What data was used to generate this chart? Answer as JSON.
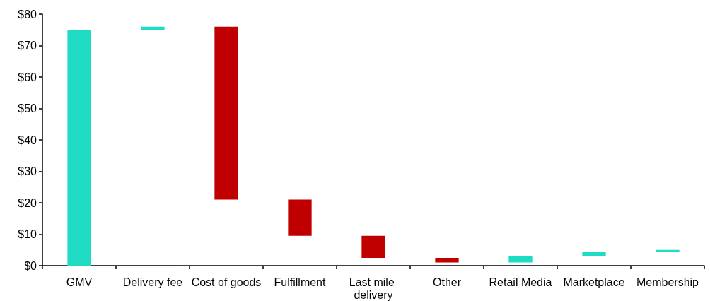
{
  "chart_data": {
    "type": "bar",
    "categories": [
      "GMV",
      "Delivery fee",
      "Cost of goods",
      "Fulfillment",
      "Last mile delivery",
      "Other",
      "Retail Media",
      "Marketplace",
      "Membership"
    ],
    "base": [
      0,
      75,
      76,
      21,
      9.5,
      2.5,
      1,
      3,
      4.5
    ],
    "values": [
      75,
      1,
      -55,
      -11.5,
      -7,
      -1.5,
      2,
      1.5,
      0.5
    ],
    "colors": [
      "#1fdbc4",
      "#1fdbc4",
      "#c00000",
      "#c00000",
      "#c00000",
      "#c00000",
      "#1fdbc4",
      "#1fdbc4",
      "#1fdbc4"
    ],
    "ylim": [
      0,
      80
    ],
    "yticks": [
      {
        "value": 0,
        "label": "$0"
      },
      {
        "value": 10,
        "label": "$10"
      },
      {
        "value": 20,
        "label": "$20"
      },
      {
        "value": 30,
        "label": "$30"
      },
      {
        "value": 40,
        "label": "$40"
      },
      {
        "value": 50,
        "label": "$50"
      },
      {
        "value": 60,
        "label": "$60"
      },
      {
        "value": 70,
        "label": "$70"
      },
      {
        "value": 80,
        "label": "$80"
      }
    ],
    "grid": false
  }
}
